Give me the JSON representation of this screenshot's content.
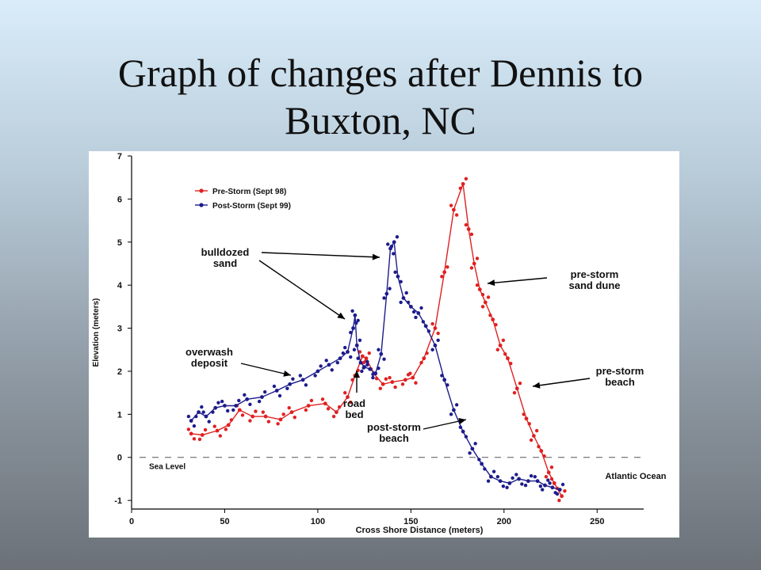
{
  "slide": {
    "title_line1": "Graph of changes after Dennis to",
    "title_line2": "Buxton, NC"
  },
  "chart_data": {
    "type": "line",
    "xlabel": "Cross Shore Distance (meters)",
    "ylabel": "Elevation (meters)",
    "xlim": [
      0,
      275
    ],
    "ylim": [
      -1.2,
      7
    ],
    "x_ticks": [
      0,
      50,
      100,
      150,
      200,
      250
    ],
    "y_ticks": [
      -1,
      0,
      1,
      2,
      3,
      4,
      5,
      6,
      7
    ],
    "legend_position": "top-left",
    "reference_line": {
      "y": 0,
      "label": "Sea Level",
      "style": "dashed"
    },
    "series": [
      {
        "name": "Pre-Storm (Sept 98)",
        "color": "#e02020",
        "x": [
          32,
          38,
          46,
          52,
          58,
          65,
          72,
          80,
          86,
          95,
          104,
          110,
          116,
          120,
          124,
          126,
          130,
          135,
          140,
          147,
          151,
          157,
          163,
          168,
          173,
          178,
          181,
          184,
          187,
          190,
          194,
          198,
          202,
          207,
          212,
          216,
          220,
          224,
          227,
          231
        ],
        "y": [
          0.55,
          0.52,
          0.62,
          0.75,
          1.1,
          0.95,
          0.95,
          0.88,
          1.05,
          1.2,
          1.25,
          1.05,
          1.4,
          1.9,
          2.35,
          2.3,
          1.95,
          1.7,
          1.75,
          1.8,
          1.85,
          2.3,
          3.0,
          4.3,
          5.75,
          6.35,
          5.3,
          4.5,
          3.9,
          3.6,
          3.2,
          2.6,
          2.3,
          1.6,
          0.9,
          0.5,
          0.15,
          -0.35,
          -0.6,
          -0.9
        ]
      },
      {
        "name": "Post-Storm (Sept 99)",
        "color": "#1c1c8c",
        "x": [
          32,
          36,
          40,
          45,
          50,
          56,
          62,
          70,
          78,
          85,
          92,
          100,
          106,
          112,
          116,
          119,
          120,
          121,
          123,
          125,
          128,
          131,
          134,
          137,
          139,
          141,
          143,
          146,
          150,
          154,
          158,
          163,
          168,
          173,
          178,
          183,
          188,
          193,
          198,
          203,
          208,
          213,
          218,
          222,
          226,
          230
        ],
        "y": [
          0.85,
          1.05,
          0.95,
          1.15,
          1.2,
          1.2,
          1.35,
          1.4,
          1.55,
          1.7,
          1.8,
          2.0,
          2.15,
          2.3,
          2.45,
          3.0,
          3.3,
          2.6,
          2.2,
          2.1,
          2.05,
          1.95,
          2.4,
          3.8,
          4.85,
          5.0,
          4.2,
          3.7,
          3.5,
          3.35,
          3.05,
          2.6,
          1.8,
          1.1,
          0.6,
          0.2,
          -0.15,
          -0.45,
          -0.55,
          -0.6,
          -0.5,
          -0.55,
          -0.55,
          -0.65,
          -0.7,
          -0.75
        ]
      }
    ],
    "annotations": [
      {
        "text": [
          "bulldozed",
          "sand"
        ]
      },
      {
        "text": [
          "overwash",
          "deposit"
        ]
      },
      {
        "text": [
          "road",
          "bed"
        ]
      },
      {
        "text": [
          "post-storm",
          "beach"
        ]
      },
      {
        "text": [
          "pre-storm",
          "sand dune"
        ]
      },
      {
        "text": [
          "pre-storm",
          "beach"
        ]
      },
      {
        "text": [
          "Atlantic Ocean"
        ]
      }
    ]
  }
}
